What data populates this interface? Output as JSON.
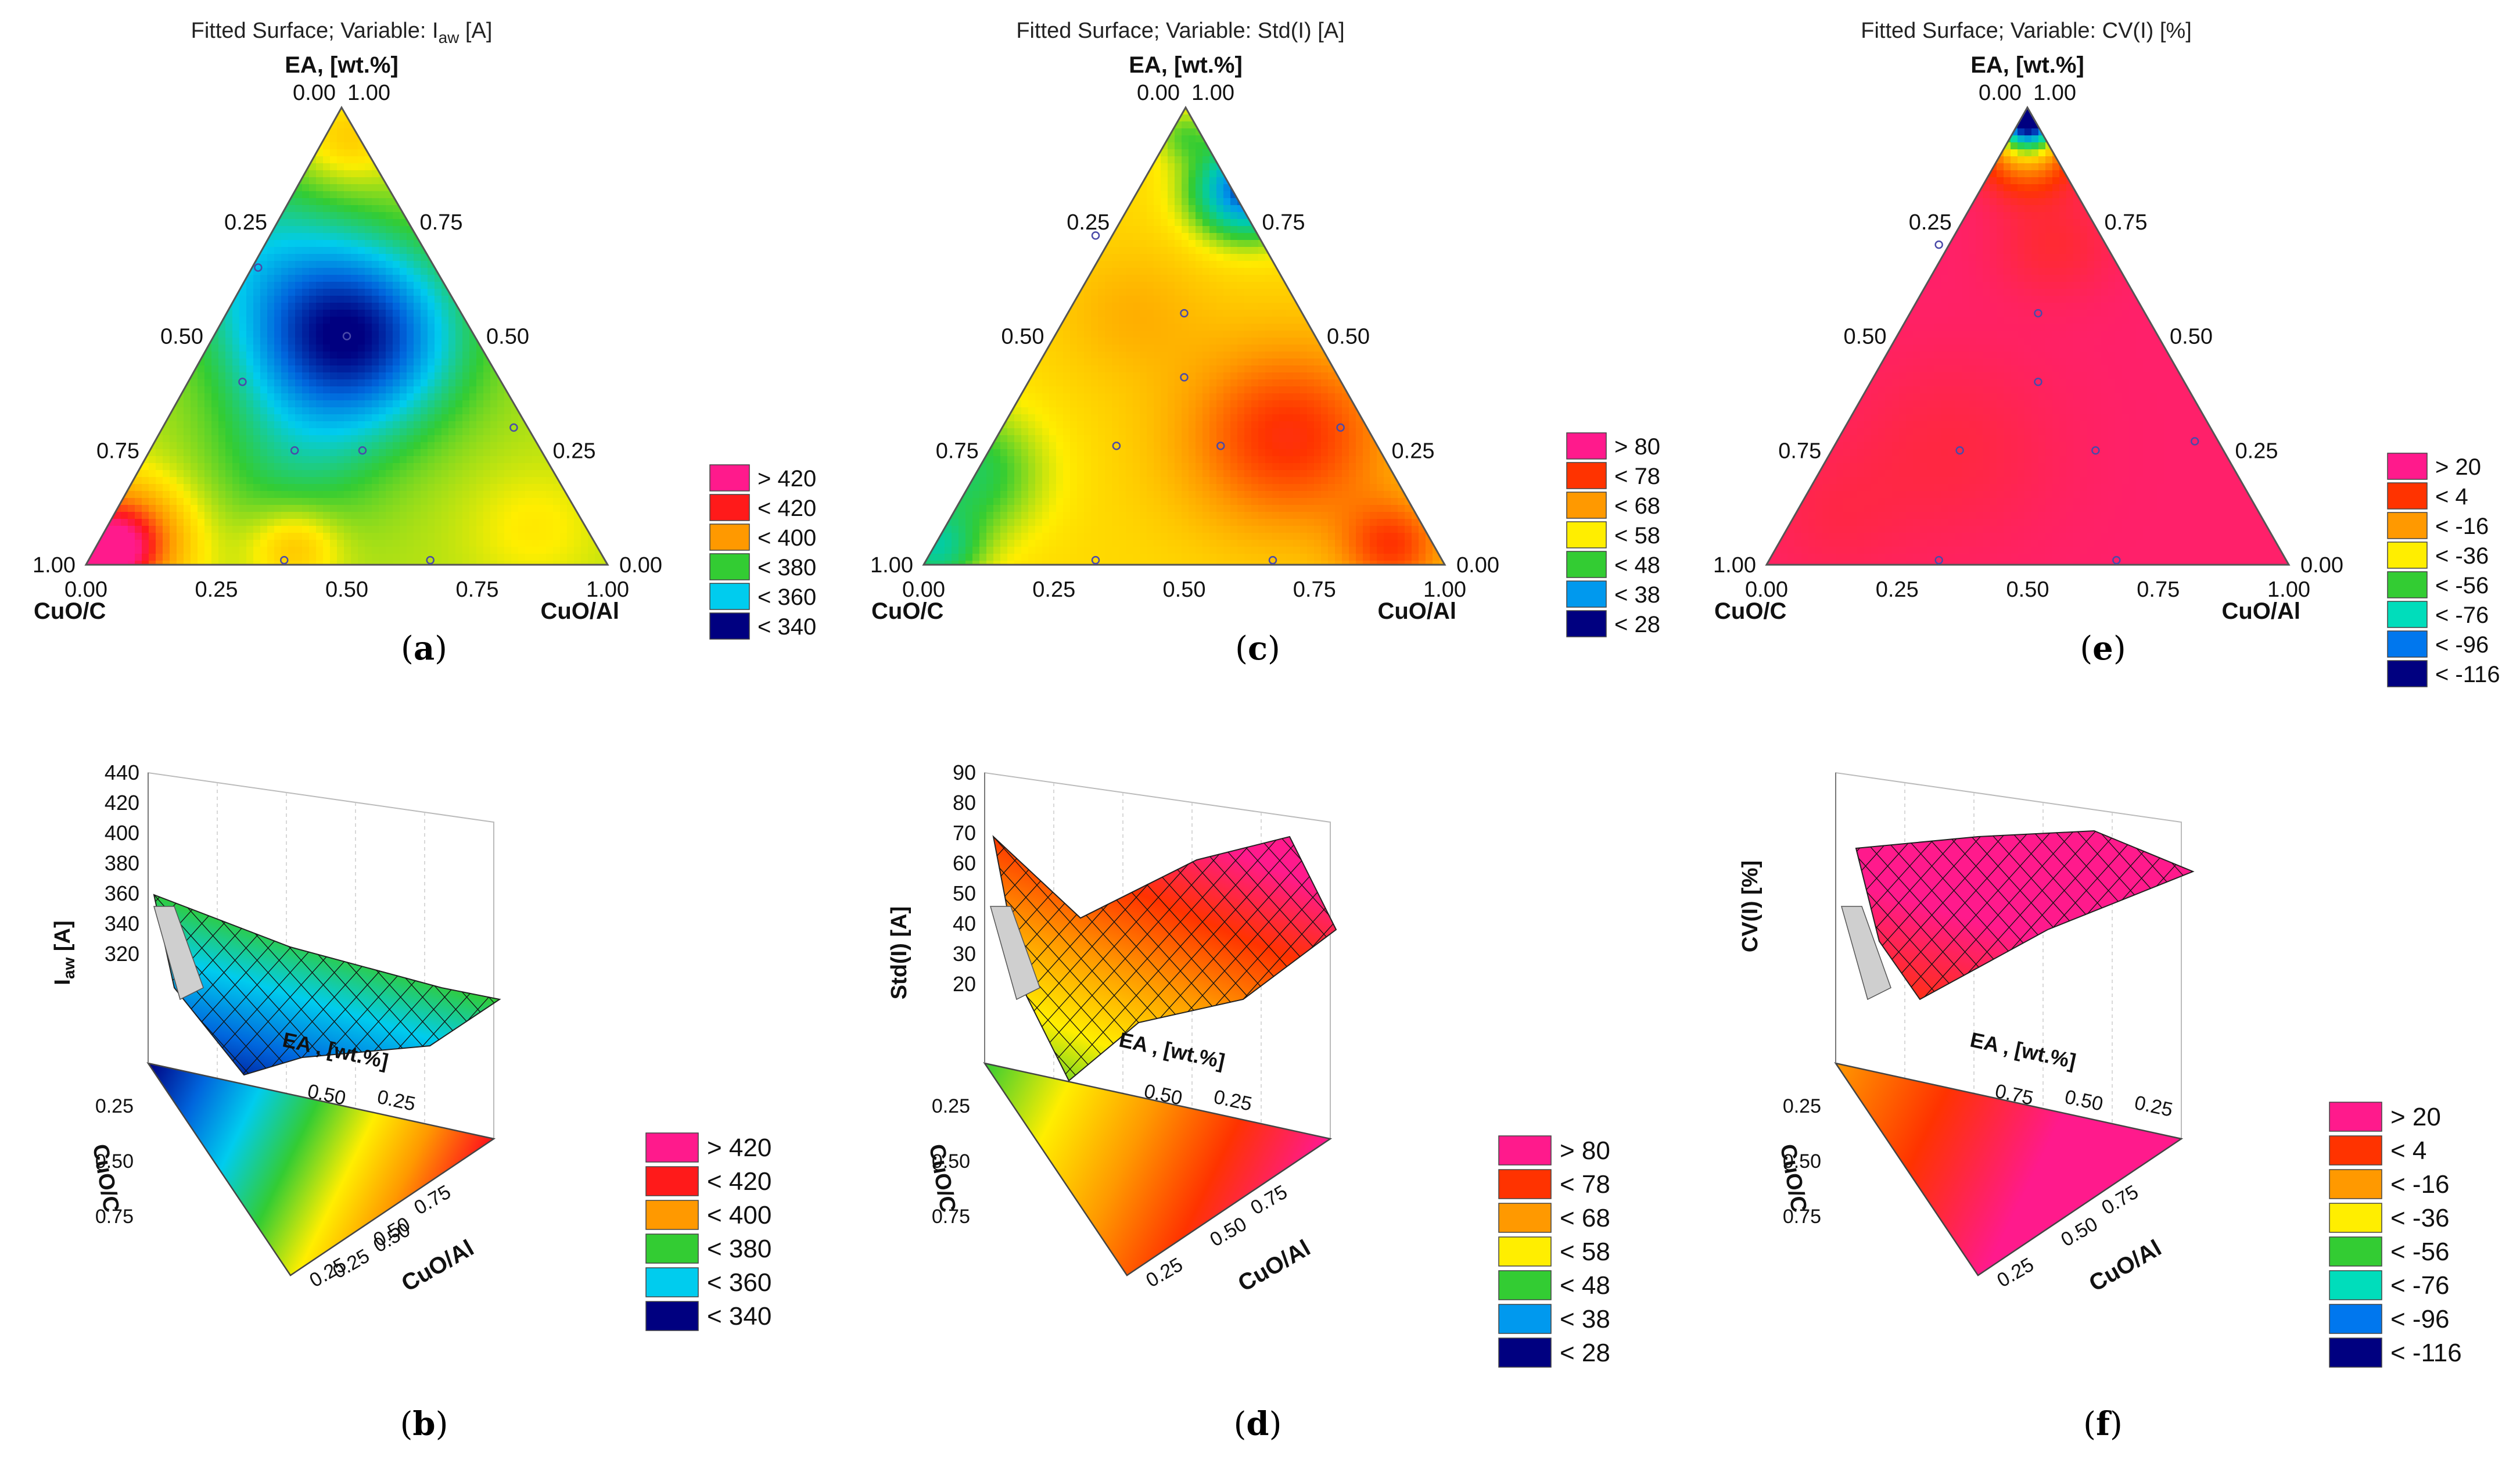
{
  "figure": {
    "panels_top": [
      "a",
      "c",
      "e"
    ],
    "panels_bottom": [
      "b",
      "d",
      "f"
    ]
  },
  "chart_data": [
    {
      "id": "a",
      "type": "ternary-contour",
      "caption": "a",
      "title_prefix": "Fitted Surface; Variable: I",
      "title_sub": "aw",
      "title_suffix": " [A]",
      "axis_top": "EA, [wt.%]",
      "axis_left": "CuO/C",
      "axis_right": "CuO/Al",
      "ticks": [
        "0.00",
        "0.25",
        "0.50",
        "0.75",
        "1.00"
      ],
      "legend": [
        {
          "label": "> 420",
          "color": "#ff1a8c"
        },
        {
          "label": "< 420",
          "color": "#ff1a1a"
        },
        {
          "label": "< 400",
          "color": "#ff9900"
        },
        {
          "label": "< 380",
          "color": "#33cc33"
        },
        {
          "label": "< 360",
          "color": "#00ccee"
        },
        {
          "label": "< 340",
          "color": "#000080"
        }
      ],
      "scale": {
        "min": 330,
        "max": 430,
        "palette": [
          "#000080",
          "#0066dd",
          "#00ccee",
          "#33cc33",
          "#ffee00",
          "#ff9900",
          "#ff1a1a",
          "#ff1a8c"
        ]
      },
      "field": {
        "base": 382,
        "terms": [
          {
            "cx": 0.5,
            "cy": 0.5,
            "amp": -52,
            "s": 0.14
          },
          {
            "cx": 0.4,
            "cy": 0.78,
            "amp": -10,
            "s": 0.12
          },
          {
            "cx": 0.28,
            "cy": 0.28,
            "amp": -14,
            "s": 0.14
          },
          {
            "cx": 0.06,
            "cy": 0.95,
            "amp": 38,
            "s": 0.09
          },
          {
            "cx": 0.04,
            "cy": 0.97,
            "amp": 40,
            "s": 0.04
          },
          {
            "cx": 0.4,
            "cy": 0.96,
            "amp": 14,
            "s": 0.06
          },
          {
            "cx": 0.86,
            "cy": 0.92,
            "amp": 6,
            "s": 0.09
          },
          {
            "cx": 0.5,
            "cy": 0.07,
            "amp": 12,
            "s": 0.07
          }
        ]
      },
      "points": [
        [
          0.33,
          0.35
        ],
        [
          0.3,
          0.6
        ],
        [
          0.5,
          0.5
        ],
        [
          0.4,
          0.75
        ],
        [
          0.53,
          0.75
        ],
        [
          0.38,
          0.99
        ],
        [
          0.66,
          0.99
        ],
        [
          0.82,
          0.7
        ]
      ]
    },
    {
      "id": "c",
      "type": "ternary-contour",
      "caption": "c",
      "title_prefix": "Fitted Surface; Variable: Std(I) [A]",
      "title_sub": "",
      "title_suffix": "",
      "axis_top": "EA, [wt.%]",
      "axis_left": "CuO/C",
      "axis_right": "CuO/Al",
      "ticks": [
        "0.00",
        "0.25",
        "0.50",
        "0.75",
        "1.00"
      ],
      "legend": [
        {
          "label": "> 80",
          "color": "#ff1a8c"
        },
        {
          "label": "< 78",
          "color": "#ff3300"
        },
        {
          "label": "< 68",
          "color": "#ff9900"
        },
        {
          "label": "< 58",
          "color": "#ffee00"
        },
        {
          "label": "< 48",
          "color": "#33cc33"
        },
        {
          "label": "< 38",
          "color": "#0099ee"
        },
        {
          "label": "< 28",
          "color": "#000080"
        }
      ],
      "scale": {
        "min": 25,
        "max": 86,
        "palette": [
          "#000080",
          "#0099ee",
          "#00ccaa",
          "#33cc33",
          "#ffee00",
          "#ff9900",
          "#ff3300",
          "#ff1a8c"
        ]
      },
      "field": {
        "base": 62,
        "terms": [
          {
            "cx": 0.7,
            "cy": 0.72,
            "amp": 16,
            "s": 0.14
          },
          {
            "cx": 0.9,
            "cy": 0.96,
            "amp": 14,
            "s": 0.07
          },
          {
            "cx": 0.08,
            "cy": 0.8,
            "amp": -14,
            "s": 0.1
          },
          {
            "cx": 0.02,
            "cy": 0.97,
            "amp": -16,
            "s": 0.06
          },
          {
            "cx": 0.62,
            "cy": 0.18,
            "amp": -34,
            "s": 0.07
          },
          {
            "cx": 0.5,
            "cy": 0.06,
            "amp": -8,
            "s": 0.04
          },
          {
            "cx": 0.4,
            "cy": 0.45,
            "amp": 4,
            "s": 0.1
          }
        ]
      },
      "points": [
        [
          0.33,
          0.28
        ],
        [
          0.5,
          0.45
        ],
        [
          0.5,
          0.59
        ],
        [
          0.37,
          0.74
        ],
        [
          0.57,
          0.74
        ],
        [
          0.33,
          0.99
        ],
        [
          0.67,
          0.99
        ],
        [
          0.8,
          0.7
        ]
      ]
    },
    {
      "id": "e",
      "type": "ternary-contour",
      "caption": "e",
      "title_prefix": "Fitted Surface; Variable: CV(I) [%]",
      "title_sub": "",
      "title_suffix": "",
      "axis_top": "EA, [wt.%]",
      "axis_left": "CuO/C",
      "axis_right": "CuO/Al",
      "ticks": [
        "0.00",
        "0.25",
        "0.50",
        "0.75",
        "1.00"
      ],
      "legend": [
        {
          "label": "> 20",
          "color": "#ff1a8c"
        },
        {
          "label": "< 4",
          "color": "#ff3300"
        },
        {
          "label": "< -16",
          "color": "#ff9900"
        },
        {
          "label": "< -36",
          "color": "#ffee00"
        },
        {
          "label": "< -56",
          "color": "#33cc33"
        },
        {
          "label": "< -76",
          "color": "#00ddbb"
        },
        {
          "label": "< -96",
          "color": "#0077ee"
        },
        {
          "label": "< -116",
          "color": "#000080"
        }
      ],
      "scale": {
        "min": -120,
        "max": 26,
        "palette": [
          "#000080",
          "#0077ee",
          "#00ddbb",
          "#33cc33",
          "#ffee00",
          "#ff9900",
          "#ff3300",
          "#ff1a8c"
        ]
      },
      "field": {
        "base": 21,
        "terms": [
          {
            "cx": 0.5,
            "cy": 0.02,
            "amp": -145,
            "s": 0.045
          },
          {
            "cx": 0.5,
            "cy": 0.1,
            "amp": -35,
            "s": 0.06
          },
          {
            "cx": 0.55,
            "cy": 0.3,
            "amp": -8,
            "s": 0.08
          },
          {
            "cx": 0.35,
            "cy": 0.75,
            "amp": -6,
            "s": 0.15
          },
          {
            "cx": 0.12,
            "cy": 0.9,
            "amp": -4,
            "s": 0.1
          }
        ]
      },
      "points": [
        [
          0.33,
          0.3
        ],
        [
          0.52,
          0.45
        ],
        [
          0.52,
          0.6
        ],
        [
          0.37,
          0.75
        ],
        [
          0.63,
          0.75
        ],
        [
          0.33,
          0.99
        ],
        [
          0.67,
          0.99
        ],
        [
          0.82,
          0.73
        ]
      ]
    },
    {
      "id": "b",
      "type": "3d-surface",
      "caption": "b",
      "zlabel_prefix": "I",
      "zlabel_sub": "aw",
      "zlabel_suffix": " [A]",
      "zticks": [
        "440",
        "420",
        "400",
        "380",
        "360",
        "340",
        "320"
      ],
      "xlabel": "EA , [wt.%]",
      "ylabel": "CuO/C",
      "rlabel": "CuO/Al",
      "floor_ticks_left": [
        "0.25",
        "0.50",
        "0.75"
      ],
      "floor_ticks_bottom": [
        "0.25",
        "0.50"
      ],
      "floor_ticks_right": [
        "0.75",
        "0.50",
        "0.25"
      ],
      "back_ticks": [
        "0.50",
        "0.25"
      ],
      "legend": [
        {
          "label": "> 420",
          "color": "#ff1a8c"
        },
        {
          "label": "< 420",
          "color": "#ff1a1a"
        },
        {
          "label": "< 400",
          "color": "#ff9900"
        },
        {
          "label": "< 380",
          "color": "#33cc33"
        },
        {
          "label": "< 360",
          "color": "#00ccee"
        },
        {
          "label": "< 340",
          "color": "#000080"
        }
      ]
    },
    {
      "id": "d",
      "type": "3d-surface",
      "caption": "d",
      "zlabel_prefix": "Std(I) [A]",
      "zlabel_sub": "",
      "zlabel_suffix": "",
      "zticks": [
        "90",
        "80",
        "70",
        "60",
        "50",
        "40",
        "30",
        "20"
      ],
      "xlabel": "EA , [wt.%]",
      "ylabel": "CuO/C",
      "rlabel": "CuO/Al",
      "floor_ticks_left": [
        "0.25",
        "0.50",
        "0.75"
      ],
      "floor_ticks_bottom": [
        "0.25"
      ],
      "floor_ticks_right": [
        "0.75",
        "0.50"
      ],
      "back_ticks": [
        "0.50",
        "0.25"
      ],
      "legend": [
        {
          "label": "> 80",
          "color": "#ff1a8c"
        },
        {
          "label": "< 78",
          "color": "#ff3300"
        },
        {
          "label": "< 68",
          "color": "#ff9900"
        },
        {
          "label": "< 58",
          "color": "#ffee00"
        },
        {
          "label": "< 48",
          "color": "#33cc33"
        },
        {
          "label": "< 38",
          "color": "#0099ee"
        },
        {
          "label": "< 28",
          "color": "#000080"
        }
      ]
    },
    {
      "id": "f",
      "type": "3d-surface",
      "caption": "f",
      "zlabel_prefix": "CV(I) [%]",
      "zlabel_sub": "",
      "zlabel_suffix": "",
      "zticks": [],
      "xlabel": "EA , [wt.%]",
      "ylabel": "CuO/C",
      "rlabel": "CuO/Al",
      "floor_ticks_left": [
        "0.25",
        "0.50",
        "0.75"
      ],
      "floor_ticks_bottom": [
        "0.25"
      ],
      "floor_ticks_right": [
        "0.75",
        "0.50"
      ],
      "back_ticks": [
        "0.75",
        "0.50",
        "0.25"
      ],
      "legend": [
        {
          "label": "> 20",
          "color": "#ff1a8c"
        },
        {
          "label": "< 4",
          "color": "#ff3300"
        },
        {
          "label": "< -16",
          "color": "#ff9900"
        },
        {
          "label": "< -36",
          "color": "#ffee00"
        },
        {
          "label": "< -56",
          "color": "#33cc33"
        },
        {
          "label": "< -76",
          "color": "#00ddbb"
        },
        {
          "label": "< -96",
          "color": "#0077ee"
        },
        {
          "label": "< -116",
          "color": "#000080"
        }
      ]
    }
  ]
}
